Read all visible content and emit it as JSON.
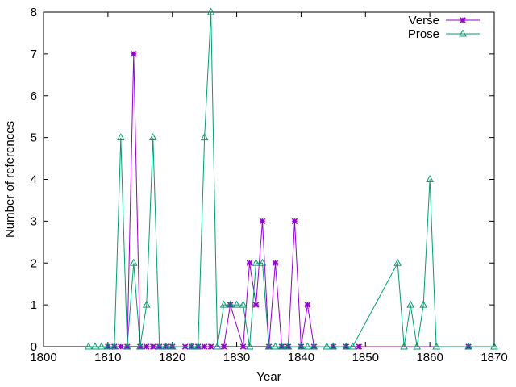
{
  "chart_data": {
    "type": "line",
    "xlabel": "Year",
    "ylabel": "Number of references",
    "xlim": [
      1800,
      1870
    ],
    "ylim": [
      0,
      8
    ],
    "xticks": [
      "1800",
      "1810",
      "1820",
      "1830",
      "1840",
      "1850",
      "1860",
      "1870"
    ],
    "yticks": [
      "0",
      "1",
      "2",
      "3",
      "4",
      "5",
      "6",
      "7",
      "8"
    ],
    "grid": false,
    "legend_position": "top-right",
    "series": [
      {
        "name": "Verse",
        "color": "#9400d3",
        "marker": "asterisk",
        "points": [
          [
            1810,
            0
          ],
          [
            1811,
            0
          ],
          [
            1812,
            0
          ],
          [
            1813,
            0
          ],
          [
            1814,
            7
          ],
          [
            1815,
            0
          ],
          [
            1816,
            0
          ],
          [
            1817,
            0
          ],
          [
            1818,
            0
          ],
          [
            1819,
            0
          ],
          [
            1820,
            0
          ],
          [
            1822,
            0
          ],
          [
            1823,
            0
          ],
          [
            1824,
            0
          ],
          [
            1825,
            0
          ],
          [
            1826,
            0
          ],
          [
            1828,
            0
          ],
          [
            1829,
            1
          ],
          [
            1831,
            0
          ],
          [
            1832,
            2
          ],
          [
            1833,
            1
          ],
          [
            1834,
            3
          ],
          [
            1835,
            0
          ],
          [
            1836,
            2
          ],
          [
            1837,
            0
          ],
          [
            1838,
            0
          ],
          [
            1839,
            3
          ],
          [
            1840,
            0
          ],
          [
            1841,
            1
          ],
          [
            1842,
            0
          ],
          [
            1845,
            0
          ],
          [
            1847,
            0
          ],
          [
            1849,
            0
          ],
          [
            1866,
            0
          ]
        ]
      },
      {
        "name": "Prose",
        "color": "#009e73",
        "marker": "triangle",
        "points": [
          [
            1807,
            0
          ],
          [
            1808,
            0
          ],
          [
            1809,
            0
          ],
          [
            1810,
            0
          ],
          [
            1811,
            0
          ],
          [
            1812,
            5
          ],
          [
            1813,
            0
          ],
          [
            1814,
            2
          ],
          [
            1815,
            0
          ],
          [
            1816,
            1
          ],
          [
            1817,
            5
          ],
          [
            1818,
            0
          ],
          [
            1819,
            0
          ],
          [
            1820,
            0
          ],
          [
            1823,
            0
          ],
          [
            1824,
            0
          ],
          [
            1825,
            5
          ],
          [
            1826,
            8
          ],
          [
            1827,
            0
          ],
          [
            1828,
            1
          ],
          [
            1829,
            1
          ],
          [
            1830,
            1
          ],
          [
            1831,
            1
          ],
          [
            1832,
            0
          ],
          [
            1833,
            2
          ],
          [
            1834,
            2
          ],
          [
            1835,
            0
          ],
          [
            1836,
            0
          ],
          [
            1837,
            0
          ],
          [
            1838,
            0
          ],
          [
            1840,
            0
          ],
          [
            1841,
            0
          ],
          [
            1842,
            0
          ],
          [
            1844,
            0
          ],
          [
            1845,
            0
          ],
          [
            1847,
            0
          ],
          [
            1848,
            0
          ],
          [
            1855,
            2
          ],
          [
            1856,
            0
          ],
          [
            1857,
            1
          ],
          [
            1858,
            0
          ],
          [
            1859,
            1
          ],
          [
            1860,
            4
          ],
          [
            1861,
            0
          ],
          [
            1866,
            0
          ],
          [
            1870,
            0
          ]
        ]
      }
    ]
  }
}
